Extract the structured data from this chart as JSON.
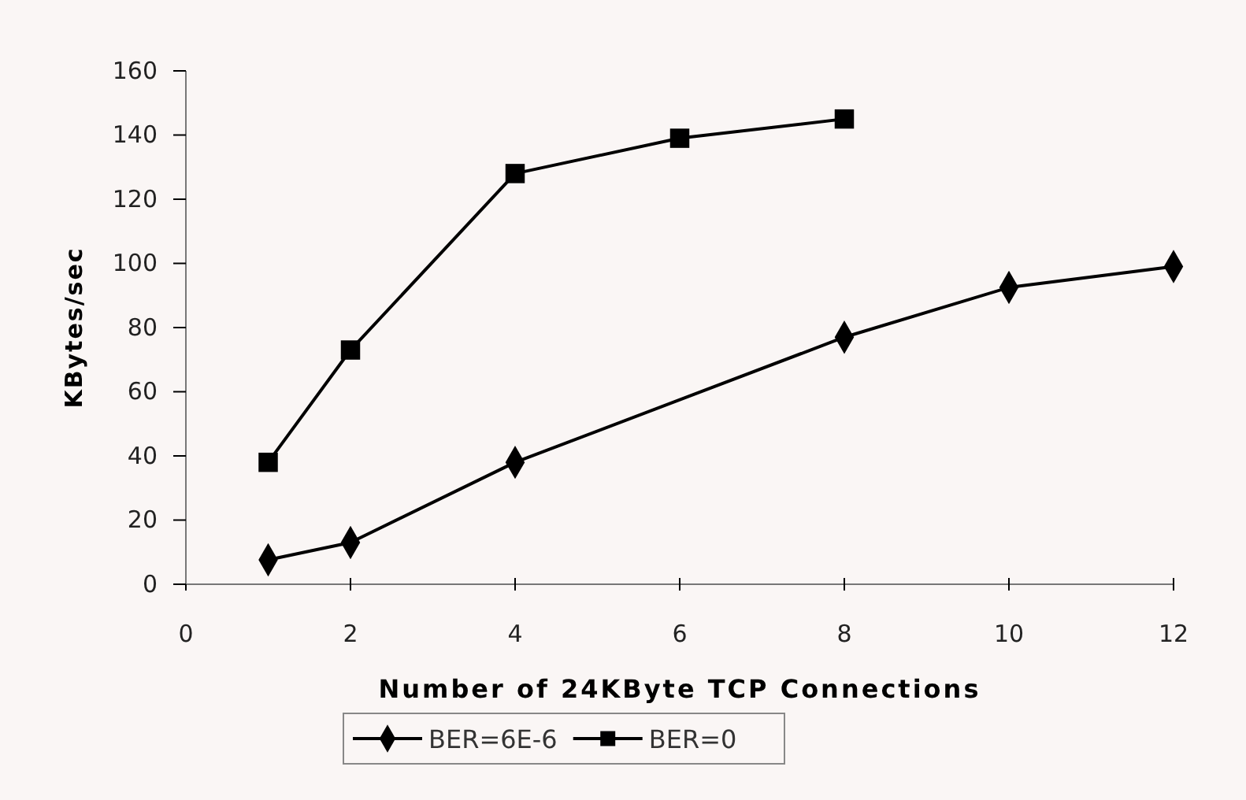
{
  "chart_data": {
    "type": "line",
    "xlabel": "Number of 24KByte TCP Connections",
    "ylabel": "KBytes/sec",
    "xlim": [
      0,
      12
    ],
    "xticks": [
      0,
      2,
      4,
      6,
      8,
      10,
      12
    ],
    "ylim": [
      0,
      160
    ],
    "yticks": [
      0,
      20,
      40,
      60,
      80,
      100,
      120,
      140,
      160
    ],
    "grid": false,
    "legend": "bottom",
    "series": [
      {
        "name": "BER=6E-6",
        "color": "#000000",
        "marker": "diamond",
        "x": [
          1,
          2,
          4,
          8,
          10,
          12
        ],
        "values": [
          7.6,
          13,
          38,
          77,
          92.5,
          99
        ]
      },
      {
        "name": "BER=0",
        "color": "#000000",
        "marker": "square",
        "x": [
          1,
          2,
          4,
          6,
          8
        ],
        "values": [
          38,
          73,
          128,
          139,
          145
        ]
      }
    ]
  }
}
